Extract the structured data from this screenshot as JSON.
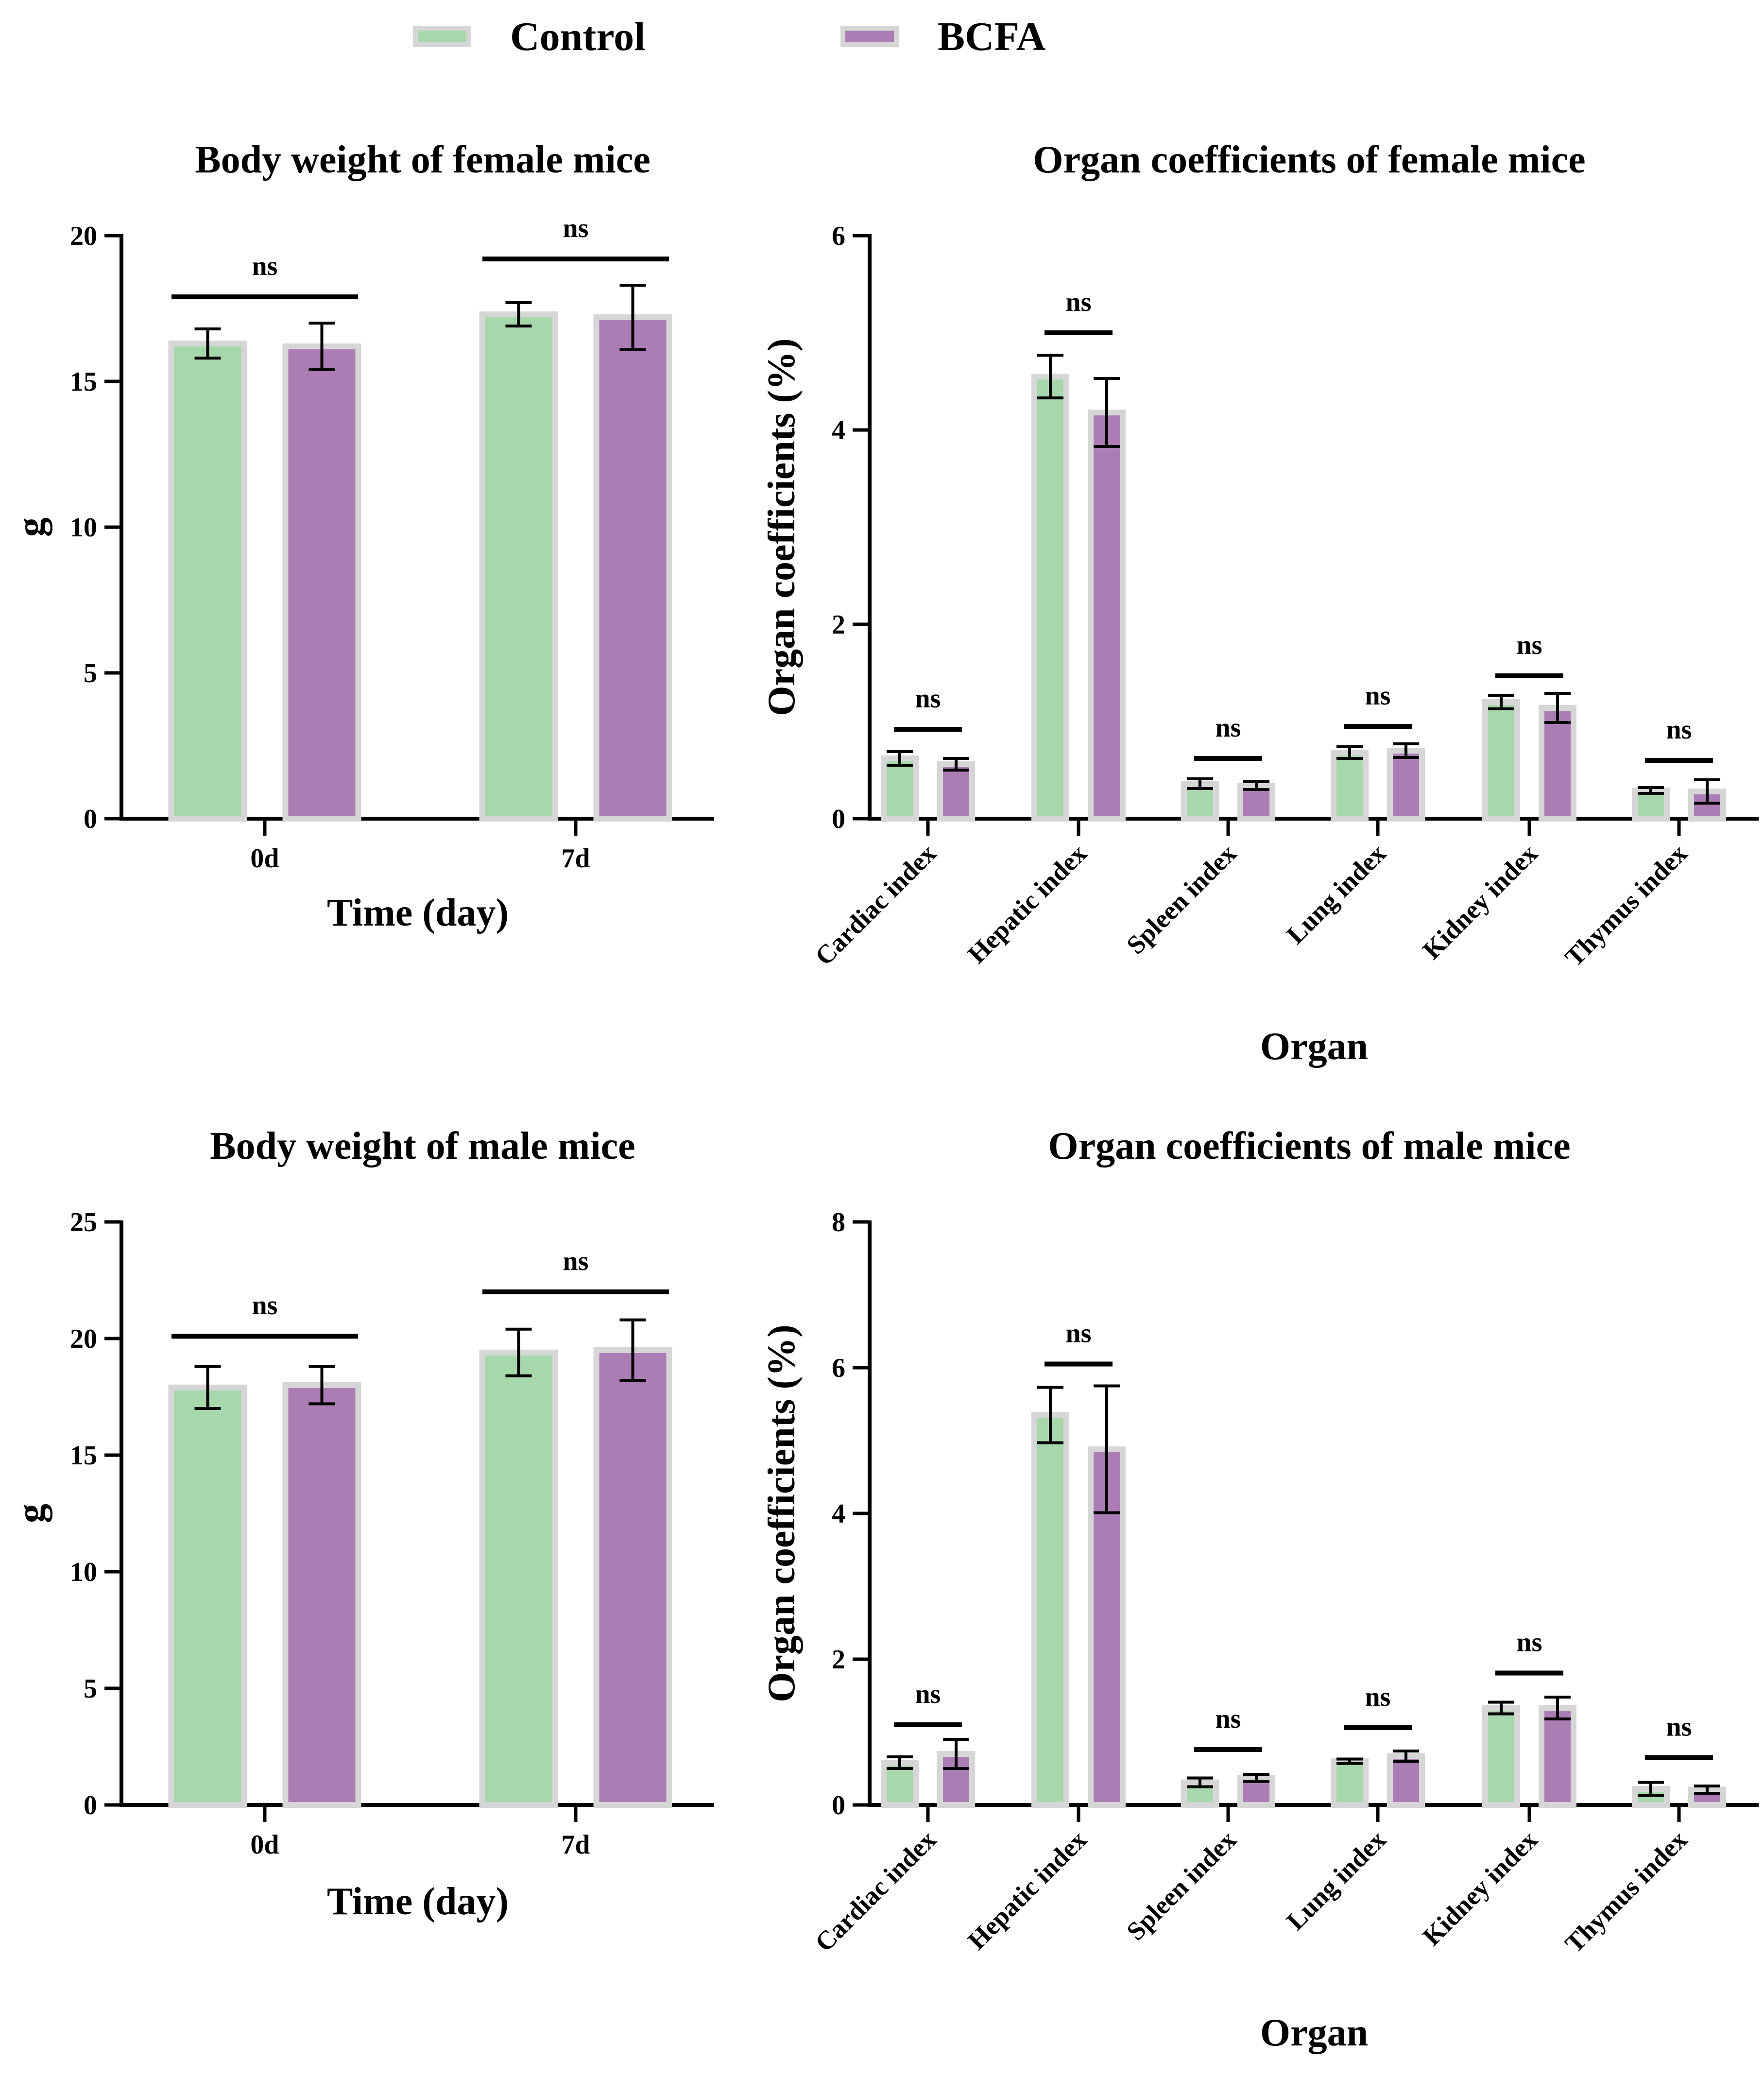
{
  "legend": {
    "control_label": "Control",
    "bcfa_label": "BCFA",
    "control_color": "#a7d8ac",
    "bcfa_color": "#ac7db5"
  },
  "chart_data": [
    {
      "id": "bw-female",
      "type": "bar",
      "title": "Body weight of female mice",
      "xlabel": "Time (day)",
      "ylabel": "g",
      "ylim": [
        0,
        20
      ],
      "yticks": [
        0,
        5,
        10,
        15,
        20
      ],
      "categories": [
        "0d",
        "7d"
      ],
      "series": [
        {
          "name": "Control",
          "values": [
            16.3,
            17.3
          ],
          "errors": [
            0.5,
            0.4
          ]
        },
        {
          "name": "BCFA",
          "values": [
            16.2,
            17.2
          ],
          "errors": [
            0.8,
            1.1
          ]
        }
      ],
      "significance": [
        "ns",
        "ns"
      ],
      "sig_levels": [
        17.9,
        19.2
      ]
    },
    {
      "id": "oc-female",
      "type": "bar",
      "title": "Organ coefficients of female mice",
      "xlabel": "Organ",
      "ylabel": "Organ coefficients (%)",
      "ylim": [
        0,
        6
      ],
      "yticks": [
        0,
        2,
        4,
        6
      ],
      "categories": [
        "Cardiac index",
        "Hepatic index",
        "Spleen index",
        "Lung index",
        "Kidney index",
        "Thymus index"
      ],
      "series": [
        {
          "name": "Control",
          "values": [
            0.62,
            4.55,
            0.36,
            0.68,
            1.2,
            0.29
          ],
          "errors": [
            0.07,
            0.22,
            0.05,
            0.06,
            0.07,
            0.03
          ]
        },
        {
          "name": "BCFA",
          "values": [
            0.56,
            4.18,
            0.34,
            0.7,
            1.14,
            0.28
          ],
          "errors": [
            0.06,
            0.35,
            0.04,
            0.07,
            0.15,
            0.12
          ]
        }
      ],
      "significance": [
        "ns",
        "ns",
        "ns",
        "ns",
        "ns",
        "ns"
      ],
      "sig_levels": [
        0.92,
        5.0,
        0.62,
        0.95,
        1.47,
        0.6
      ]
    },
    {
      "id": "bw-male",
      "type": "bar",
      "title": "Body weight of male mice",
      "xlabel": "Time (day)",
      "ylabel": "g",
      "ylim": [
        0,
        25
      ],
      "yticks": [
        0,
        5,
        10,
        15,
        20,
        25
      ],
      "categories": [
        "0d",
        "7d"
      ],
      "series": [
        {
          "name": "Control",
          "values": [
            17.9,
            19.4
          ],
          "errors": [
            0.9,
            1.0
          ]
        },
        {
          "name": "BCFA",
          "values": [
            18.0,
            19.5
          ],
          "errors": [
            0.8,
            1.3
          ]
        }
      ],
      "significance": [
        "ns",
        "ns"
      ],
      "sig_levels": [
        20.1,
        22.0
      ]
    },
    {
      "id": "oc-male",
      "type": "bar",
      "title": "Organ coefficients of male mice",
      "xlabel": "Organ",
      "ylabel": "Organ coefficients (%)",
      "ylim": [
        0,
        8
      ],
      "yticks": [
        0,
        2,
        4,
        6,
        8
      ],
      "categories": [
        "Cardiac index",
        "Hepatic index",
        "Spleen index",
        "Lung index",
        "Kidney index",
        "Thymus index"
      ],
      "series": [
        {
          "name": "Control",
          "values": [
            0.58,
            5.35,
            0.31,
            0.6,
            1.33,
            0.22
          ],
          "errors": [
            0.08,
            0.38,
            0.06,
            0.03,
            0.08,
            0.09
          ]
        },
        {
          "name": "BCFA",
          "values": [
            0.7,
            4.88,
            0.37,
            0.67,
            1.33,
            0.21
          ],
          "errors": [
            0.2,
            0.87,
            0.05,
            0.07,
            0.15,
            0.05
          ]
        }
      ],
      "significance": [
        "ns",
        "ns",
        "ns",
        "ns",
        "ns",
        "ns"
      ],
      "sig_levels": [
        1.1,
        6.05,
        0.76,
        1.06,
        1.81,
        0.65
      ]
    }
  ]
}
